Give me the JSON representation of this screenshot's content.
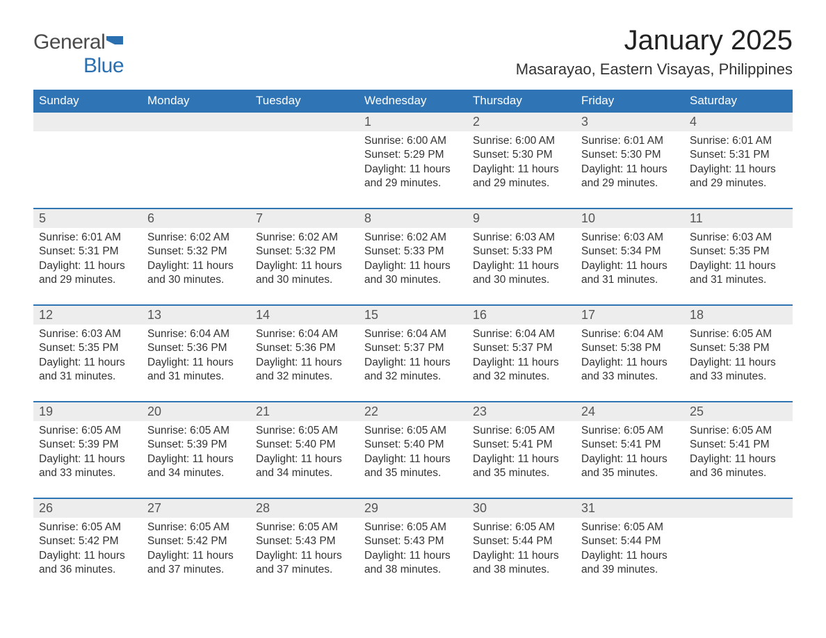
{
  "logo": {
    "text1": "General",
    "text2": "Blue",
    "icon_color": "#2a6fb0"
  },
  "title": "January 2025",
  "subtitle": "Masarayao, Eastern Visayas, Philippines",
  "colors": {
    "header_bg": "#2f74b5",
    "header_text": "#ffffff",
    "daynum_bg": "#ededed",
    "week_border": "#2f74b5",
    "body_text": "#333333"
  },
  "typography": {
    "title_fontsize": 40,
    "subtitle_fontsize": 22,
    "dow_fontsize": 17,
    "daynum_fontsize": 18,
    "details_fontsize": 15.5
  },
  "days_of_week": [
    "Sunday",
    "Monday",
    "Tuesday",
    "Wednesday",
    "Thursday",
    "Friday",
    "Saturday"
  ],
  "weeks": [
    [
      {
        "n": "",
        "sunrise": "",
        "sunset": "",
        "daylight": ""
      },
      {
        "n": "",
        "sunrise": "",
        "sunset": "",
        "daylight": ""
      },
      {
        "n": "",
        "sunrise": "",
        "sunset": "",
        "daylight": ""
      },
      {
        "n": "1",
        "sunrise": "6:00 AM",
        "sunset": "5:29 PM",
        "daylight": "11 hours and 29 minutes."
      },
      {
        "n": "2",
        "sunrise": "6:00 AM",
        "sunset": "5:30 PM",
        "daylight": "11 hours and 29 minutes."
      },
      {
        "n": "3",
        "sunrise": "6:01 AM",
        "sunset": "5:30 PM",
        "daylight": "11 hours and 29 minutes."
      },
      {
        "n": "4",
        "sunrise": "6:01 AM",
        "sunset": "5:31 PM",
        "daylight": "11 hours and 29 minutes."
      }
    ],
    [
      {
        "n": "5",
        "sunrise": "6:01 AM",
        "sunset": "5:31 PM",
        "daylight": "11 hours and 29 minutes."
      },
      {
        "n": "6",
        "sunrise": "6:02 AM",
        "sunset": "5:32 PM",
        "daylight": "11 hours and 30 minutes."
      },
      {
        "n": "7",
        "sunrise": "6:02 AM",
        "sunset": "5:32 PM",
        "daylight": "11 hours and 30 minutes."
      },
      {
        "n": "8",
        "sunrise": "6:02 AM",
        "sunset": "5:33 PM",
        "daylight": "11 hours and 30 minutes."
      },
      {
        "n": "9",
        "sunrise": "6:03 AM",
        "sunset": "5:33 PM",
        "daylight": "11 hours and 30 minutes."
      },
      {
        "n": "10",
        "sunrise": "6:03 AM",
        "sunset": "5:34 PM",
        "daylight": "11 hours and 31 minutes."
      },
      {
        "n": "11",
        "sunrise": "6:03 AM",
        "sunset": "5:35 PM",
        "daylight": "11 hours and 31 minutes."
      }
    ],
    [
      {
        "n": "12",
        "sunrise": "6:03 AM",
        "sunset": "5:35 PM",
        "daylight": "11 hours and 31 minutes."
      },
      {
        "n": "13",
        "sunrise": "6:04 AM",
        "sunset": "5:36 PM",
        "daylight": "11 hours and 31 minutes."
      },
      {
        "n": "14",
        "sunrise": "6:04 AM",
        "sunset": "5:36 PM",
        "daylight": "11 hours and 32 minutes."
      },
      {
        "n": "15",
        "sunrise": "6:04 AM",
        "sunset": "5:37 PM",
        "daylight": "11 hours and 32 minutes."
      },
      {
        "n": "16",
        "sunrise": "6:04 AM",
        "sunset": "5:37 PM",
        "daylight": "11 hours and 32 minutes."
      },
      {
        "n": "17",
        "sunrise": "6:04 AM",
        "sunset": "5:38 PM",
        "daylight": "11 hours and 33 minutes."
      },
      {
        "n": "18",
        "sunrise": "6:05 AM",
        "sunset": "5:38 PM",
        "daylight": "11 hours and 33 minutes."
      }
    ],
    [
      {
        "n": "19",
        "sunrise": "6:05 AM",
        "sunset": "5:39 PM",
        "daylight": "11 hours and 33 minutes."
      },
      {
        "n": "20",
        "sunrise": "6:05 AM",
        "sunset": "5:39 PM",
        "daylight": "11 hours and 34 minutes."
      },
      {
        "n": "21",
        "sunrise": "6:05 AM",
        "sunset": "5:40 PM",
        "daylight": "11 hours and 34 minutes."
      },
      {
        "n": "22",
        "sunrise": "6:05 AM",
        "sunset": "5:40 PM",
        "daylight": "11 hours and 35 minutes."
      },
      {
        "n": "23",
        "sunrise": "6:05 AM",
        "sunset": "5:41 PM",
        "daylight": "11 hours and 35 minutes."
      },
      {
        "n": "24",
        "sunrise": "6:05 AM",
        "sunset": "5:41 PM",
        "daylight": "11 hours and 35 minutes."
      },
      {
        "n": "25",
        "sunrise": "6:05 AM",
        "sunset": "5:41 PM",
        "daylight": "11 hours and 36 minutes."
      }
    ],
    [
      {
        "n": "26",
        "sunrise": "6:05 AM",
        "sunset": "5:42 PM",
        "daylight": "11 hours and 36 minutes."
      },
      {
        "n": "27",
        "sunrise": "6:05 AM",
        "sunset": "5:42 PM",
        "daylight": "11 hours and 37 minutes."
      },
      {
        "n": "28",
        "sunrise": "6:05 AM",
        "sunset": "5:43 PM",
        "daylight": "11 hours and 37 minutes."
      },
      {
        "n": "29",
        "sunrise": "6:05 AM",
        "sunset": "5:43 PM",
        "daylight": "11 hours and 38 minutes."
      },
      {
        "n": "30",
        "sunrise": "6:05 AM",
        "sunset": "5:44 PM",
        "daylight": "11 hours and 38 minutes."
      },
      {
        "n": "31",
        "sunrise": "6:05 AM",
        "sunset": "5:44 PM",
        "daylight": "11 hours and 39 minutes."
      },
      {
        "n": "",
        "sunrise": "",
        "sunset": "",
        "daylight": ""
      }
    ]
  ],
  "labels": {
    "sunrise": "Sunrise: ",
    "sunset": "Sunset: ",
    "daylight": "Daylight: "
  }
}
